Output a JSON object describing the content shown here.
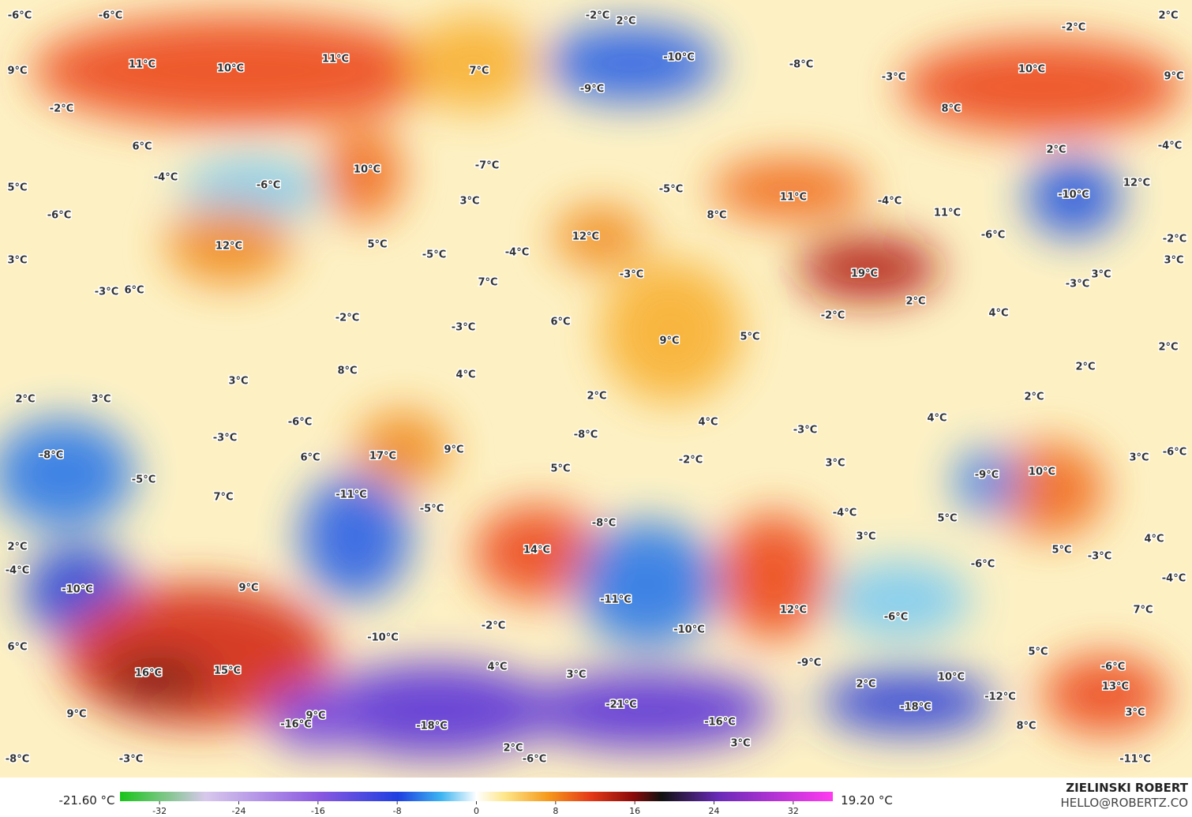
{
  "map": {
    "labels": [
      "-6°C",
      "-6°C",
      "-2°C",
      "2°C",
      "-2°C",
      "2°C",
      "9°C",
      "11°C",
      "10°C",
      "11°C",
      "7°C",
      "-10°C",
      "-9°C",
      "-8°C",
      "-3°C",
      "10°C",
      "9°C",
      "-2°C",
      "8°C",
      "6°C",
      "2°C",
      "-4°C",
      "-4°C",
      "-6°C",
      "10°C",
      "-7°C",
      "5°C",
      "-5°C",
      "11°C",
      "-4°C",
      "-10°C",
      "12°C",
      "-6°C",
      "3°C",
      "8°C",
      "11°C",
      "12°C",
      "5°C",
      "12°C",
      "-5°C",
      "-4°C",
      "-6°C",
      "-2°C",
      "3°C",
      "19°C",
      "-3°C",
      "3°C",
      "3°C",
      "-3°C",
      "-3°C",
      "6°C",
      "7°C",
      "2°C",
      "-2°C",
      "6°C",
      "-3°C",
      "-2°C",
      "4°C",
      "9°C",
      "5°C",
      "2°C",
      "8°C",
      "4°C",
      "2°C",
      "3°C",
      "2°C",
      "3°C",
      "2°C",
      "2°C",
      "-6°C",
      "4°C",
      "4°C",
      "-3°C",
      "-3°C",
      "-8°C",
      "-8°C",
      "6°C",
      "17°C",
      "9°C",
      "-2°C",
      "3°C",
      "3°C",
      "-6°C",
      "-5°C",
      "5°C",
      "-9°C",
      "10°C",
      "7°C",
      "-11°C",
      "-5°C",
      "-4°C",
      "5°C",
      "-8°C",
      "2°C",
      "14°C",
      "3°C",
      "5°C",
      "-3°C",
      "4°C",
      "-4°C",
      "-6°C",
      "-4°C",
      "-10°C",
      "9°C",
      "-11°C",
      "7°C",
      "12°C",
      "-6°C",
      "-2°C",
      "-10°C",
      "-10°C",
      "6°C",
      "5°C",
      "-9°C",
      "-6°C",
      "16°C",
      "15°C",
      "4°C",
      "3°C",
      "10°C",
      "2°C",
      "13°C",
      "-12°C",
      "-21°C",
      "-18°C",
      "9°C",
      "9°C",
      "-16°C",
      "-18°C",
      "-16°C",
      "8°C",
      "3°C",
      "3°C",
      "2°C",
      "-8°C",
      "-3°C",
      "-6°C",
      "-11°C"
    ],
    "colorbar": {
      "min_label": "-21.60 °C",
      "max_label": "19.20 °C",
      "lim": [
        -36,
        36
      ],
      "ticks": [
        -32,
        -24,
        -16,
        -8,
        0,
        8,
        16,
        24,
        32
      ]
    },
    "credit": {
      "name": "ZIELINSKI ROBERT",
      "contact": "HELLO@ROBERTZ.CO"
    }
  }
}
